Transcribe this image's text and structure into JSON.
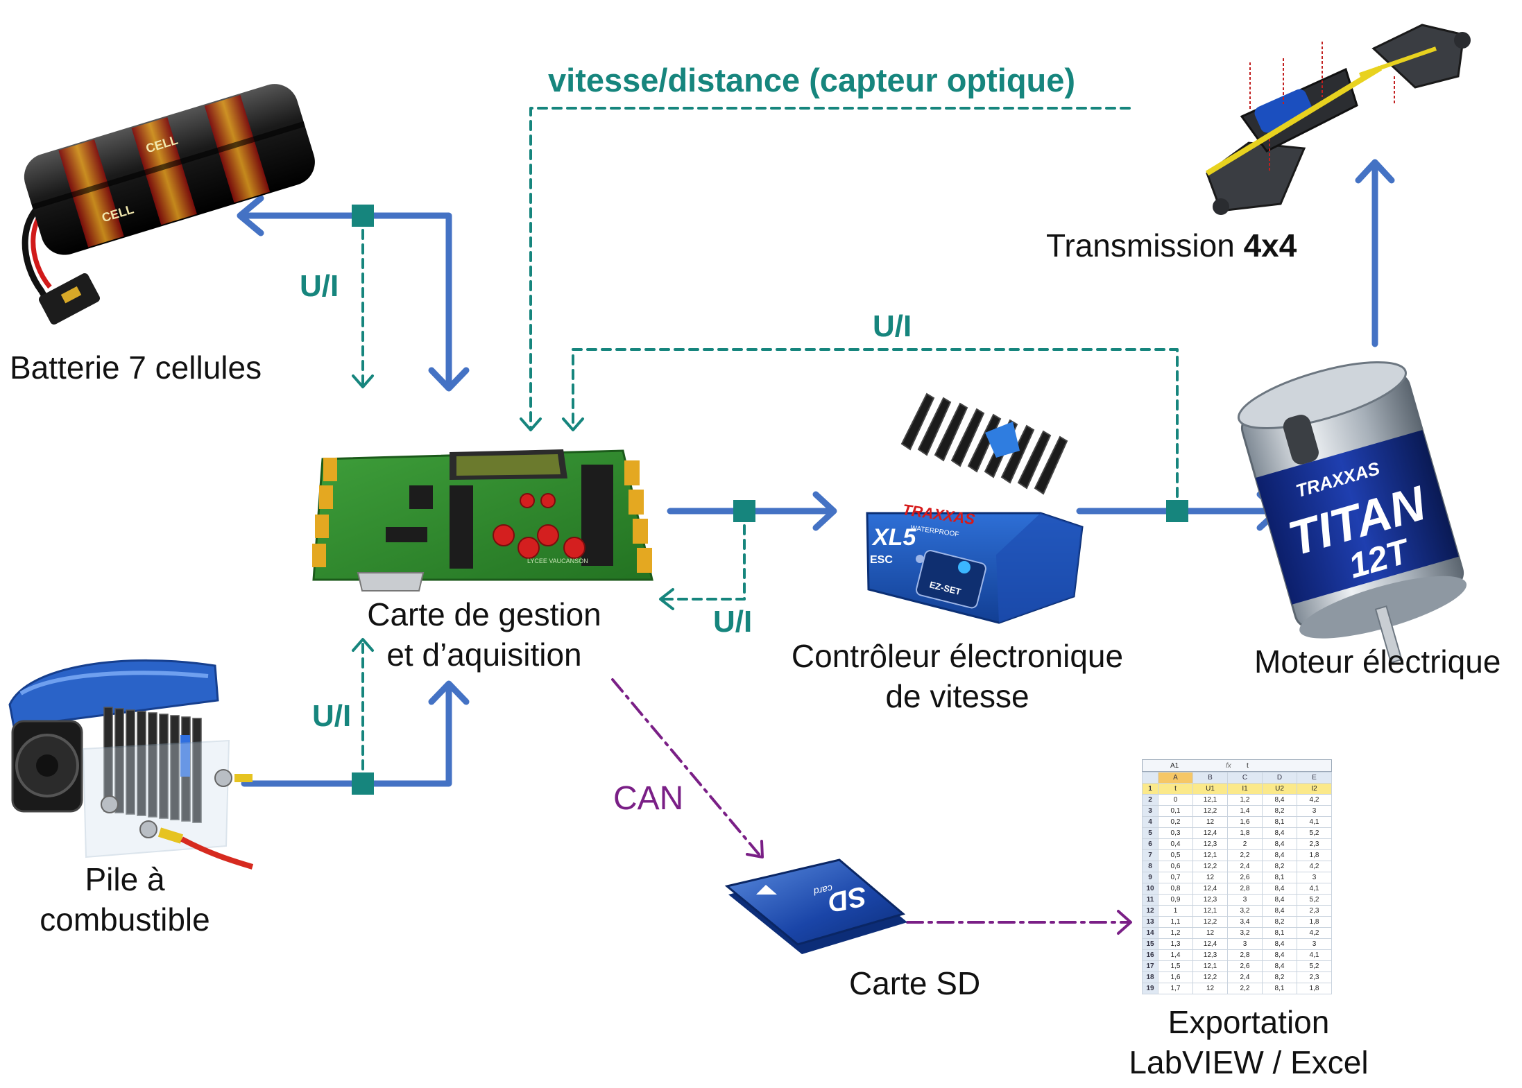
{
  "title": "vitesse/distance (capteur optique)",
  "components": {
    "battery": "Batterie 7 cellules",
    "board_line1": "Carte de gestion",
    "board_line2": "et d’aquisition",
    "controller_line1": "Contrôleur électronique",
    "controller_line2": "de vitesse",
    "motor": "Moteur électrique",
    "transmission_text": "Transmission ",
    "transmission_bold": "4x4",
    "fuelcell_line1": "Pile à",
    "fuelcell_line2": "combustible",
    "sdcard": "Carte SD",
    "export_line1": "Exportation",
    "export_line2": "LabVIEW / Excel"
  },
  "signals": {
    "ui_battery": "U/I",
    "ui_controller_top": "U/I",
    "ui_controller_feedback": "U/I",
    "ui_fuelcell": "U/I",
    "can": "CAN"
  },
  "colors": {
    "power": "#4472c4",
    "signal": "#16857d",
    "data": "#7a1f86",
    "node": "#16857d"
  },
  "spreadsheet": {
    "cell_ref": "A1",
    "fx_symbol": "fx",
    "formula": "t",
    "columns": [
      "A",
      "B",
      "C",
      "D",
      "E"
    ],
    "header": [
      "t",
      "U1",
      "I1",
      "U2",
      "I2"
    ],
    "rows": [
      [
        "0",
        "12,1",
        "1,2",
        "8,4",
        "4,2"
      ],
      [
        "0,1",
        "12,2",
        "1,4",
        "8,2",
        "3"
      ],
      [
        "0,2",
        "12",
        "1,6",
        "8,1",
        "4,1"
      ],
      [
        "0,3",
        "12,4",
        "1,8",
        "8,4",
        "5,2"
      ],
      [
        "0,4",
        "12,3",
        "2",
        "8,4",
        "2,3"
      ],
      [
        "0,5",
        "12,1",
        "2,2",
        "8,4",
        "1,8"
      ],
      [
        "0,6",
        "12,2",
        "2,4",
        "8,2",
        "4,2"
      ],
      [
        "0,7",
        "12",
        "2,6",
        "8,1",
        "3"
      ],
      [
        "0,8",
        "12,4",
        "2,8",
        "8,4",
        "4,1"
      ],
      [
        "0,9",
        "12,3",
        "3",
        "8,4",
        "5,2"
      ],
      [
        "1",
        "12,1",
        "3,2",
        "8,4",
        "2,3"
      ],
      [
        "1,1",
        "12,2",
        "3,4",
        "8,2",
        "1,8"
      ],
      [
        "1,2",
        "12",
        "3,2",
        "8,1",
        "4,2"
      ],
      [
        "1,3",
        "12,4",
        "3",
        "8,4",
        "3"
      ],
      [
        "1,4",
        "12,3",
        "2,8",
        "8,4",
        "4,1"
      ],
      [
        "1,5",
        "12,1",
        "2,6",
        "8,4",
        "5,2"
      ],
      [
        "1,6",
        "12,2",
        "2,4",
        "8,2",
        "2,3"
      ],
      [
        "1,7",
        "12",
        "2,2",
        "8,1",
        "1,8"
      ]
    ]
  },
  "pictures": {
    "battery_brand": "CELL",
    "board_caption": "LYCEE VAUCANSON",
    "esc_brand": "TRAXXAS",
    "esc_model": "XL5",
    "esc_waterproof": "WATERPROOF",
    "esc_type": "ESC",
    "esc_button": "EZ-SET",
    "motor_brand": "TRAXXAS",
    "motor_model": "TITAN",
    "motor_turns": "12T",
    "sd_logo": "SD",
    "sd_label": "card"
  }
}
